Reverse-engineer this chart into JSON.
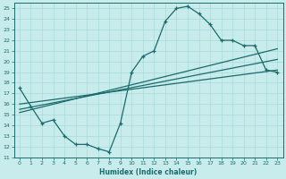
{
  "xlabel": "Humidex (Indice chaleur)",
  "ylabel": "",
  "bg_color": "#c8ecec",
  "grid_color": "#a8d8d8",
  "line_color": "#1a6b6b",
  "xlim": [
    -0.5,
    23.5
  ],
  "ylim": [
    11,
    25.5
  ],
  "xticks": [
    0,
    1,
    2,
    3,
    4,
    5,
    6,
    7,
    8,
    9,
    10,
    11,
    12,
    13,
    14,
    15,
    16,
    17,
    18,
    19,
    20,
    21,
    22,
    23
  ],
  "yticks": [
    11,
    12,
    13,
    14,
    15,
    16,
    17,
    18,
    19,
    20,
    21,
    22,
    23,
    24,
    25
  ],
  "main_curve_x": [
    0,
    1,
    2,
    3,
    4,
    5,
    6,
    7,
    8,
    9,
    10,
    11,
    12,
    13,
    14,
    15,
    16,
    17,
    18,
    19,
    20,
    21,
    22,
    23
  ],
  "main_curve_y": [
    17.5,
    15.8,
    14.2,
    14.5,
    13.0,
    12.2,
    12.2,
    11.8,
    11.5,
    14.2,
    19.0,
    20.5,
    21.0,
    23.8,
    25.0,
    25.2,
    24.5,
    23.5,
    22.0,
    22.0,
    21.5,
    21.5,
    19.2,
    19.0
  ],
  "line1_x": [
    0,
    23
  ],
  "line1_y": [
    16.0,
    19.2
  ],
  "line2_x": [
    0,
    23
  ],
  "line2_y": [
    15.2,
    21.2
  ],
  "line3_x": [
    0,
    23
  ],
  "line3_y": [
    15.5,
    20.2
  ]
}
